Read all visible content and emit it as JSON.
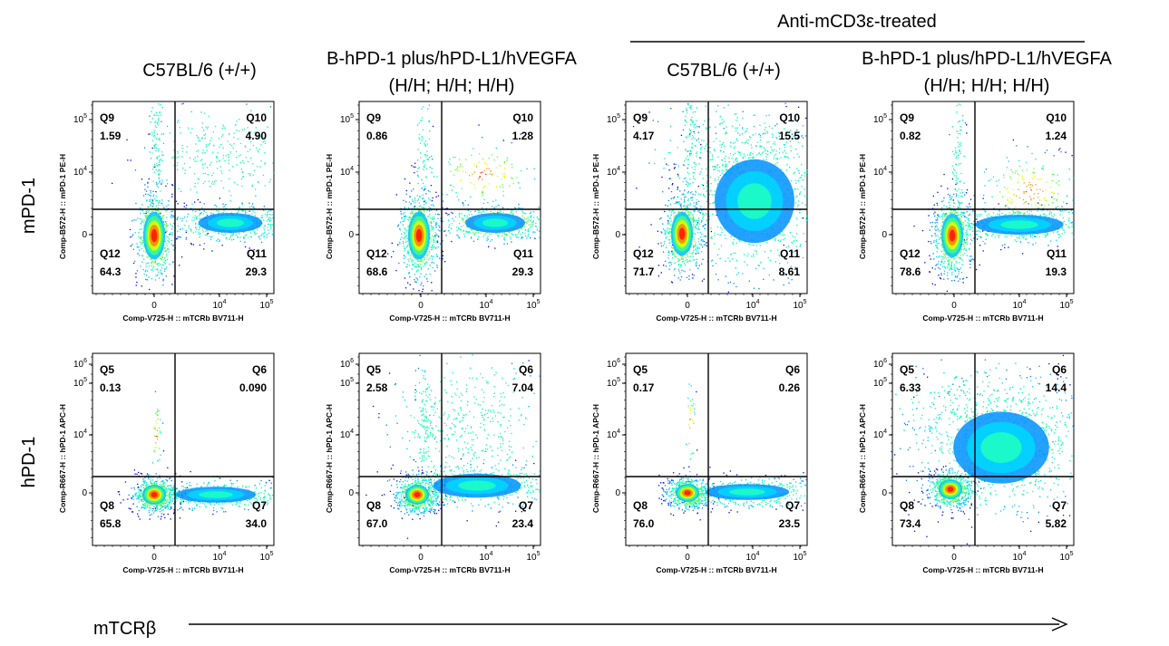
{
  "header": {
    "group_title": "Anti-mCD3ε-treated"
  },
  "columns": [
    {
      "title_line1": "C57BL/6 (+/+)",
      "title_line2": ""
    },
    {
      "title_line1": "B-hPD-1 plus/hPD-L1/hVEGFA",
      "title_line2": "(H/H; H/H; H/H)"
    },
    {
      "title_line1": "C57BL/6 (+/+)",
      "title_line2": ""
    },
    {
      "title_line1": "B-hPD-1 plus/hPD-L1/hVEGFA",
      "title_line2": "(H/H; H/H; H/H)"
    }
  ],
  "rows": [
    {
      "label": "mPD-1",
      "y_axis_label": "Comp-B572-H :: mPD-1 PE-H"
    },
    {
      "label": "hPD-1",
      "y_axis_label": "Comp-R667-H :: hPD-1 APC-H"
    }
  ],
  "x_axis_label": "Comp-V725-H :: mTCRb BV711-H",
  "bottom_axis_label": "mTCRβ",
  "chart_data": [
    {
      "type": "scatter",
      "row": 0,
      "col": 0,
      "quadrants": {
        "Q9": "1.59",
        "Q10": "4.90",
        "Q11": "29.3",
        "Q12": "64.3"
      },
      "xlabel": "Comp-V725-H :: mTCRb BV711-H",
      "ylabel": "Comp-B572-H :: mPD-1 PE-H",
      "x_ticks": [
        "0",
        "10^4",
        "10^5"
      ],
      "y_ticks": [
        "0",
        "10^4",
        "10^5"
      ]
    },
    {
      "type": "scatter",
      "row": 0,
      "col": 1,
      "quadrants": {
        "Q9": "0.86",
        "Q10": "1.28",
        "Q11": "29.3",
        "Q12": "68.6"
      },
      "xlabel": "Comp-V725-H :: mTCRb BV711-H",
      "ylabel": "Comp-B572-H :: mPD-1 PE-H",
      "x_ticks": [
        "0",
        "10^4",
        "10^5"
      ],
      "y_ticks": [
        "0",
        "10^4",
        "10^5"
      ]
    },
    {
      "type": "scatter",
      "row": 0,
      "col": 2,
      "quadrants": {
        "Q9": "4.17",
        "Q10": "15.5",
        "Q11": "8.61",
        "Q12": "71.7"
      },
      "xlabel": "Comp-V725-H :: mTCRb BV711-H",
      "ylabel": "Comp-B572-H :: mPD-1 PE-H",
      "x_ticks": [
        "0",
        "10^4",
        "10^5"
      ],
      "y_ticks": [
        "0",
        "10^4",
        "10^5"
      ]
    },
    {
      "type": "scatter",
      "row": 0,
      "col": 3,
      "quadrants": {
        "Q9": "0.82",
        "Q10": "1.24",
        "Q11": "19.3",
        "Q12": "78.6"
      },
      "xlabel": "Comp-V725-H :: mTCRb BV711-H",
      "ylabel": "Comp-B572-H :: mPD-1 PE-H",
      "x_ticks": [
        "0",
        "10^4",
        "10^5"
      ],
      "y_ticks": [
        "0",
        "10^4",
        "10^5"
      ]
    },
    {
      "type": "scatter",
      "row": 1,
      "col": 0,
      "quadrants": {
        "Q5": "0.13",
        "Q6": "0.090",
        "Q7": "34.0",
        "Q8": "65.8"
      },
      "xlabel": "Comp-V725-H :: mTCRb BV711-H",
      "ylabel": "Comp-R667-H :: hPD-1 APC-H",
      "x_ticks": [
        "0",
        "10^4",
        "10^5"
      ],
      "y_ticks": [
        "0",
        "10^4",
        "10^5",
        "10^6"
      ]
    },
    {
      "type": "scatter",
      "row": 1,
      "col": 1,
      "quadrants": {
        "Q5": "2.58",
        "Q6": "7.04",
        "Q7": "23.4",
        "Q8": "67.0"
      },
      "xlabel": "Comp-V725-H :: mTCRb BV711-H",
      "ylabel": "Comp-R667-H :: hPD-1 APC-H",
      "x_ticks": [
        "0",
        "10^4",
        "10^5"
      ],
      "y_ticks": [
        "0",
        "10^4",
        "10^5",
        "10^6"
      ]
    },
    {
      "type": "scatter",
      "row": 1,
      "col": 2,
      "quadrants": {
        "Q5": "0.17",
        "Q6": "0.26",
        "Q7": "23.5",
        "Q8": "76.0"
      },
      "xlabel": "Comp-V725-H :: mTCRb BV711-H",
      "ylabel": "Comp-R667-H :: hPD-1 APC-H",
      "x_ticks": [
        "0",
        "10^4",
        "10^5"
      ],
      "y_ticks": [
        "0",
        "10^4",
        "10^5",
        "10^6"
      ]
    },
    {
      "type": "scatter",
      "row": 1,
      "col": 3,
      "quadrants": {
        "Q5": "6.33",
        "Q6": "14.4",
        "Q7": "5.82",
        "Q8": "73.4"
      },
      "xlabel": "Comp-V725-H :: mTCRb BV711-H",
      "ylabel": "Comp-R667-H :: hPD-1 APC-H",
      "x_ticks": [
        "0",
        "10^4",
        "10^5"
      ],
      "y_ticks": [
        "0",
        "10^4",
        "10^5",
        "10^6"
      ]
    }
  ]
}
